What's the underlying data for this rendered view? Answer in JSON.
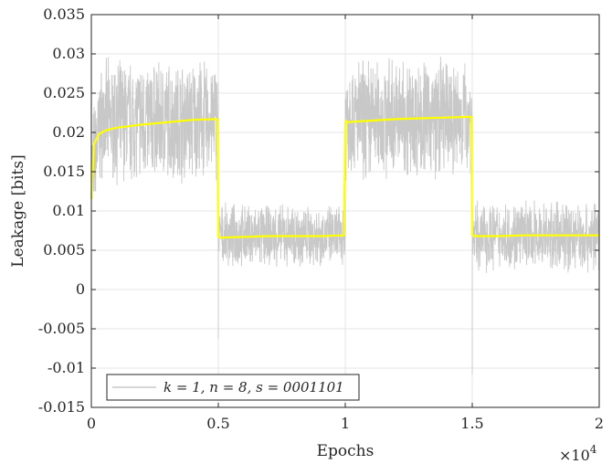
{
  "chart_data": {
    "type": "line",
    "title": "",
    "xlabel": "Epochs",
    "ylabel": "Leakage [bits]",
    "x_multiplier_label": "×10",
    "x_multiplier_exponent": "4",
    "xlim": [
      0,
      20000
    ],
    "ylim": [
      -0.015,
      0.035
    ],
    "x_ticks": [
      0,
      5000,
      10000,
      15000,
      20000
    ],
    "x_tick_labels": [
      "0",
      "0.5",
      "1",
      "1.5",
      "2"
    ],
    "y_ticks": [
      -0.015,
      -0.01,
      -0.005,
      0,
      0.005,
      0.01,
      0.015,
      0.02,
      0.025,
      0.03,
      0.035
    ],
    "y_tick_labels": [
      "-0.015",
      "-0.01",
      "-0.005",
      "0",
      "0.005",
      "0.01",
      "0.015",
      "0.02",
      "0.025",
      "0.03",
      "0.035"
    ],
    "grid": true,
    "legend_position": "bottom-left",
    "series": [
      {
        "name": "k = 1, n = 8, s = 0001101",
        "role": "raw",
        "color": "#c8c8c8",
        "segments": [
          {
            "x_start": 0,
            "x_end": 5000,
            "mean": 0.0215,
            "min": 0.0125,
            "max": 0.0298
          },
          {
            "x_start": 5000,
            "x_end": 10000,
            "mean": 0.0068,
            "min": 0.0025,
            "max": 0.0125
          },
          {
            "x_start": 10000,
            "x_end": 15000,
            "mean": 0.0218,
            "min": 0.0135,
            "max": 0.0305
          },
          {
            "x_start": 15000,
            "x_end": 20000,
            "mean": 0.0068,
            "min": 0.002,
            "max": 0.013
          }
        ],
        "spikes": [
          {
            "x": 5000,
            "y": -0.0063
          },
          {
            "x": 15000,
            "y": -0.0108
          }
        ]
      },
      {
        "name": "",
        "role": "moving average",
        "color": "#ffff00",
        "x": [
          0,
          100,
          300,
          600,
          1000,
          2000,
          3000,
          4000,
          4950,
          5000,
          5050,
          6000,
          7000,
          8000,
          9000,
          9950,
          10000,
          10050,
          11000,
          12000,
          13000,
          14000,
          14950,
          15000,
          15050,
          16000,
          17000,
          18000,
          19000,
          20000
        ],
        "y": [
          0.0115,
          0.0185,
          0.0198,
          0.0203,
          0.0206,
          0.021,
          0.0213,
          0.0216,
          0.0217,
          0.0068,
          0.0066,
          0.0067,
          0.0068,
          0.0068,
          0.0068,
          0.0069,
          0.0215,
          0.0213,
          0.0215,
          0.0217,
          0.0218,
          0.0219,
          0.022,
          0.007,
          0.0068,
          0.0068,
          0.0069,
          0.0069,
          0.0069,
          0.0069
        ]
      }
    ]
  }
}
